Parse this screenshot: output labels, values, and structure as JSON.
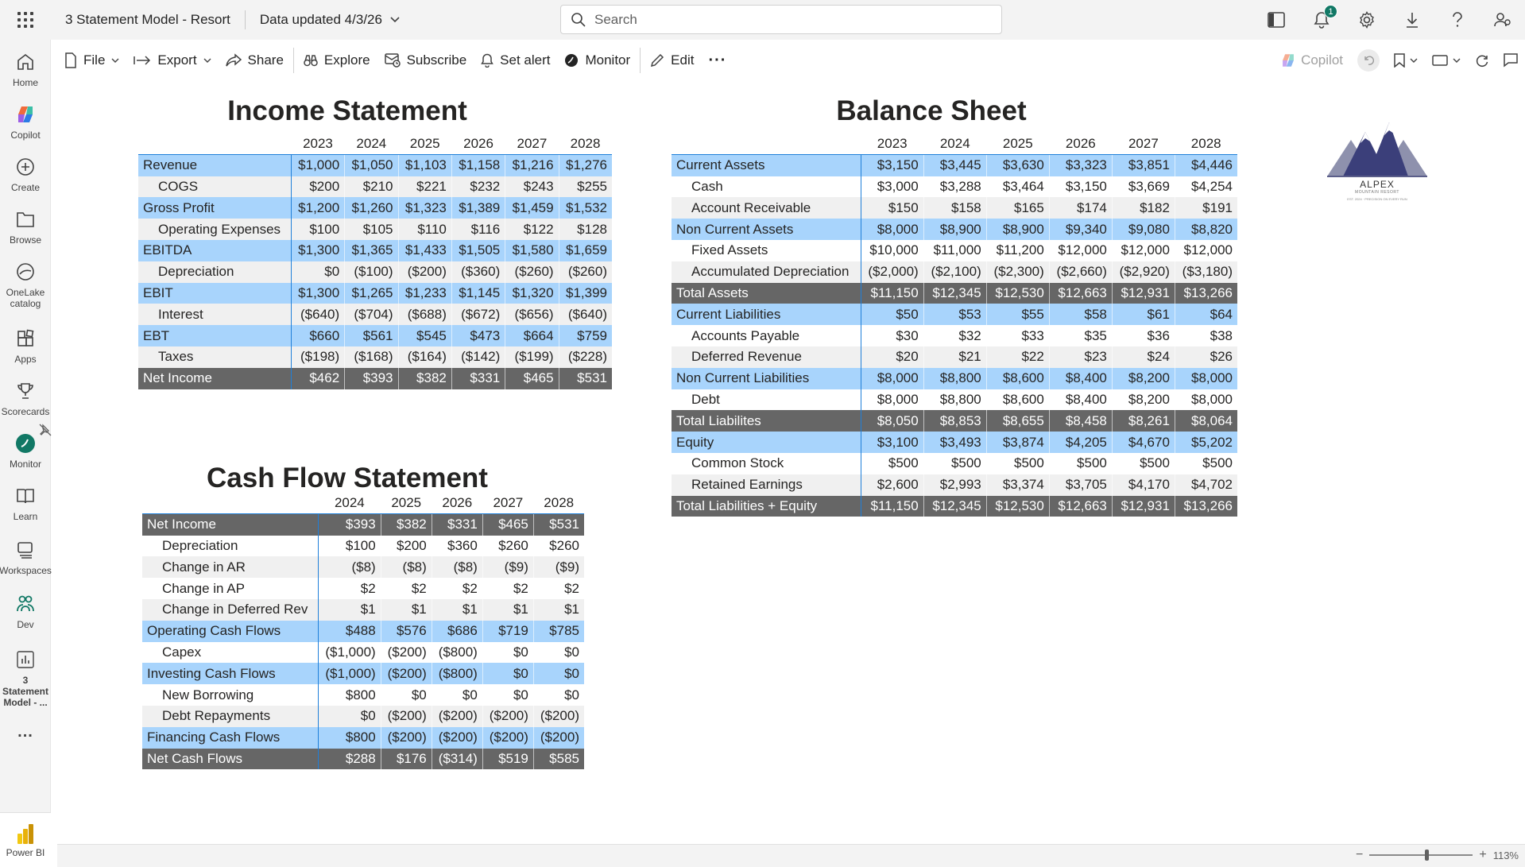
{
  "header": {
    "app_title": "3 Statement Model - Resort",
    "data_updated": "Data updated 4/3/26",
    "search_placeholder": "Search",
    "notification_count": "1"
  },
  "nav": {
    "items": [
      {
        "label": "Home",
        "icon": "home-icon"
      },
      {
        "label": "Copilot",
        "icon": "copilot-icon"
      },
      {
        "label": "Create",
        "icon": "plus-circle-icon"
      },
      {
        "label": "Browse",
        "icon": "folder-icon"
      },
      {
        "label": "OneLake catalog",
        "icon": "onelake-icon"
      },
      {
        "label": "Apps",
        "icon": "apps-icon"
      },
      {
        "label": "Scorecards",
        "icon": "trophy-icon"
      },
      {
        "label": "Monitor",
        "icon": "monitor-icon"
      },
      {
        "label": "Learn",
        "icon": "book-icon"
      },
      {
        "label": "Workspaces",
        "icon": "workspaces-icon"
      },
      {
        "label": "Dev",
        "icon": "dev-icon"
      },
      {
        "label": "3 Statement Model - ...",
        "icon": "report-icon"
      }
    ],
    "more": "...",
    "footer_label": "Power BI"
  },
  "toolbar": {
    "file": "File",
    "export": "Export",
    "share": "Share",
    "explore": "Explore",
    "subscribe": "Subscribe",
    "set_alert": "Set alert",
    "monitor": "Monitor",
    "edit": "Edit",
    "more": "···",
    "copilot": "Copilot"
  },
  "status": {
    "zoom": "113%"
  },
  "logo": {
    "name": "ALPEX",
    "tagline": "MOUNTAIN RESORT",
    "subline": "EST. 2024 · PRECISION ON EVERY RUN"
  },
  "income": {
    "title": "Income Statement",
    "years": [
      "2023",
      "2024",
      "2025",
      "2026",
      "2027",
      "2028"
    ],
    "rows": [
      {
        "label": "Revenue",
        "style": "hl",
        "values": [
          "$1,000",
          "$1,050",
          "$1,103",
          "$1,158",
          "$1,216",
          "$1,276"
        ]
      },
      {
        "label": "COGS",
        "style": "sub",
        "values": [
          "$200",
          "$210",
          "$221",
          "$232",
          "$243",
          "$255"
        ]
      },
      {
        "label": "Gross Profit",
        "style": "hl",
        "values": [
          "$1,200",
          "$1,260",
          "$1,323",
          "$1,389",
          "$1,459",
          "$1,532"
        ]
      },
      {
        "label": "Operating Expenses",
        "style": "sub",
        "values": [
          "$100",
          "$105",
          "$110",
          "$116",
          "$122",
          "$128"
        ]
      },
      {
        "label": "EBITDA",
        "style": "hl",
        "values": [
          "$1,300",
          "$1,365",
          "$1,433",
          "$1,505",
          "$1,580",
          "$1,659"
        ]
      },
      {
        "label": "Depreciation",
        "style": "sub",
        "values": [
          "$0",
          "($100)",
          "($200)",
          "($360)",
          "($260)",
          "($260)"
        ]
      },
      {
        "label": "EBIT",
        "style": "hl",
        "values": [
          "$1,300",
          "$1,265",
          "$1,233",
          "$1,145",
          "$1,320",
          "$1,399"
        ]
      },
      {
        "label": "Interest",
        "style": "sub",
        "values": [
          "($640)",
          "($704)",
          "($688)",
          "($672)",
          "($656)",
          "($640)"
        ]
      },
      {
        "label": "EBT",
        "style": "hl",
        "values": [
          "$660",
          "$561",
          "$545",
          "$473",
          "$664",
          "$759"
        ]
      },
      {
        "label": "Taxes",
        "style": "sub",
        "values": [
          "($198)",
          "($168)",
          "($164)",
          "($142)",
          "($199)",
          "($228)"
        ]
      },
      {
        "label": "Net Income",
        "style": "dk",
        "values": [
          "$462",
          "$393",
          "$382",
          "$331",
          "$465",
          "$531"
        ]
      }
    ]
  },
  "cashflow": {
    "title": "Cash Flow Statement",
    "years": [
      "2024",
      "2025",
      "2026",
      "2027",
      "2028"
    ],
    "rows": [
      {
        "label": "Net Income",
        "style": "dk",
        "values": [
          "$393",
          "$382",
          "$331",
          "$465",
          "$531"
        ]
      },
      {
        "label": "Depreciation",
        "style": "sub",
        "values": [
          "$100",
          "$200",
          "$360",
          "$260",
          "$260"
        ]
      },
      {
        "label": "Change in AR",
        "style": "sub",
        "values": [
          "($8)",
          "($8)",
          "($8)",
          "($9)",
          "($9)"
        ]
      },
      {
        "label": "Change in AP",
        "style": "sub",
        "values": [
          "$2",
          "$2",
          "$2",
          "$2",
          "$2"
        ]
      },
      {
        "label": "Change in Deferred Rev",
        "style": "sub",
        "values": [
          "$1",
          "$1",
          "$1",
          "$1",
          "$1"
        ]
      },
      {
        "label": "Operating Cash Flows",
        "style": "hl",
        "values": [
          "$488",
          "$576",
          "$686",
          "$719",
          "$785"
        ]
      },
      {
        "label": "Capex",
        "style": "sub",
        "values": [
          "($1,000)",
          "($200)",
          "($800)",
          "$0",
          "$0"
        ]
      },
      {
        "label": "Investing Cash Flows",
        "style": "hl",
        "values": [
          "($1,000)",
          "($200)",
          "($800)",
          "$0",
          "$0"
        ]
      },
      {
        "label": "New Borrowing",
        "style": "sub",
        "values": [
          "$800",
          "$0",
          "$0",
          "$0",
          "$0"
        ]
      },
      {
        "label": "Debt Repayments",
        "style": "sub",
        "values": [
          "$0",
          "($200)",
          "($200)",
          "($200)",
          "($200)"
        ]
      },
      {
        "label": "Financing Cash Flows",
        "style": "hl",
        "values": [
          "$800",
          "($200)",
          "($200)",
          "($200)",
          "($200)"
        ]
      },
      {
        "label": "Net Cash Flows",
        "style": "dk",
        "values": [
          "$288",
          "$176",
          "($314)",
          "$519",
          "$585"
        ]
      }
    ]
  },
  "balance": {
    "title": "Balance Sheet",
    "years": [
      "2023",
      "2024",
      "2025",
      "2026",
      "2027",
      "2028"
    ],
    "rows": [
      {
        "label": "Current Assets",
        "style": "hl",
        "values": [
          "$3,150",
          "$3,445",
          "$3,630",
          "$3,323",
          "$3,851",
          "$4,446"
        ]
      },
      {
        "label": "Cash",
        "style": "sub",
        "values": [
          "$3,000",
          "$3,288",
          "$3,464",
          "$3,150",
          "$3,669",
          "$4,254"
        ]
      },
      {
        "label": "Account Receivable",
        "style": "sub",
        "values": [
          "$150",
          "$158",
          "$165",
          "$174",
          "$182",
          "$191"
        ]
      },
      {
        "label": "Non Current Assets",
        "style": "hl",
        "values": [
          "$8,000",
          "$8,900",
          "$8,900",
          "$9,340",
          "$9,080",
          "$8,820"
        ]
      },
      {
        "label": "Fixed Assets",
        "style": "sub",
        "values": [
          "$10,000",
          "$11,000",
          "$11,200",
          "$12,000",
          "$12,000",
          "$12,000"
        ]
      },
      {
        "label": "Accumulated Depreciation",
        "style": "sub",
        "values": [
          "($2,000)",
          "($2,100)",
          "($2,300)",
          "($2,660)",
          "($2,920)",
          "($3,180)"
        ]
      },
      {
        "label": "Total Assets",
        "style": "dk",
        "values": [
          "$11,150",
          "$12,345",
          "$12,530",
          "$12,663",
          "$12,931",
          "$13,266"
        ]
      },
      {
        "label": "Current Liabilities",
        "style": "hl",
        "values": [
          "$50",
          "$53",
          "$55",
          "$58",
          "$61",
          "$64"
        ]
      },
      {
        "label": "Accounts Payable",
        "style": "sub",
        "values": [
          "$30",
          "$32",
          "$33",
          "$35",
          "$36",
          "$38"
        ]
      },
      {
        "label": "Deferred Revenue",
        "style": "sub",
        "values": [
          "$20",
          "$21",
          "$22",
          "$23",
          "$24",
          "$26"
        ]
      },
      {
        "label": "Non Current Liabilities",
        "style": "hl",
        "values": [
          "$8,000",
          "$8,800",
          "$8,600",
          "$8,400",
          "$8,200",
          "$8,000"
        ]
      },
      {
        "label": "Debt",
        "style": "sub",
        "values": [
          "$8,000",
          "$8,800",
          "$8,600",
          "$8,400",
          "$8,200",
          "$8,000"
        ]
      },
      {
        "label": "Total Liabilites",
        "style": "dk",
        "values": [
          "$8,050",
          "$8,853",
          "$8,655",
          "$8,458",
          "$8,261",
          "$8,064"
        ]
      },
      {
        "label": "Equity",
        "style": "hl",
        "values": [
          "$3,100",
          "$3,493",
          "$3,874",
          "$4,205",
          "$4,670",
          "$5,202"
        ]
      },
      {
        "label": "Common Stock",
        "style": "sub",
        "values": [
          "$500",
          "$500",
          "$500",
          "$500",
          "$500",
          "$500"
        ]
      },
      {
        "label": "Retained Earnings",
        "style": "sub",
        "values": [
          "$2,600",
          "$2,993",
          "$3,374",
          "$3,705",
          "$4,170",
          "$4,702"
        ]
      },
      {
        "label": "Total Liabilities + Equity",
        "style": "dk",
        "values": [
          "$11,150",
          "$12,345",
          "$12,530",
          "$12,663",
          "$12,931",
          "$13,266"
        ]
      }
    ]
  },
  "colors": {
    "highlight_row": "#a8d4fc",
    "dark_row": "#666666",
    "alt_row": "#f0f0f0",
    "accent_line": "#1f7fd9"
  }
}
